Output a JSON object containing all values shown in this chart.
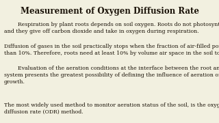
{
  "title": "Measurement of Oxygen Diffusion Rate",
  "background_color": "#f2f0e0",
  "title_fontsize": 8.5,
  "body_fontsize": 5.6,
  "paragraphs": [
    "        Respiration by plant roots depends on soil oxygen. Roots do not photosynthesize,\nand they give off carbon dioxide and take in oxygen during respiration.",
    "Diffusion of gases in the soil practically stops when the fraction of air-filled pores is less\nthan 10%. Therefore, roots need at least 10% by volume air space in the soil to survive.",
    "        Evaluation of the aeration conditions at the interface between the root and the soil\nsystem presents the greatest possibility of defining the influence of aeration on plant\ngrowth.",
    "The most widely used method to monitor aeration status of the soil, is the oxygen\ndiffusion rate (ODR) method."
  ],
  "text_color": "#1a1208",
  "fig_width": 3.2,
  "fig_height": 1.8,
  "dpi": 100
}
